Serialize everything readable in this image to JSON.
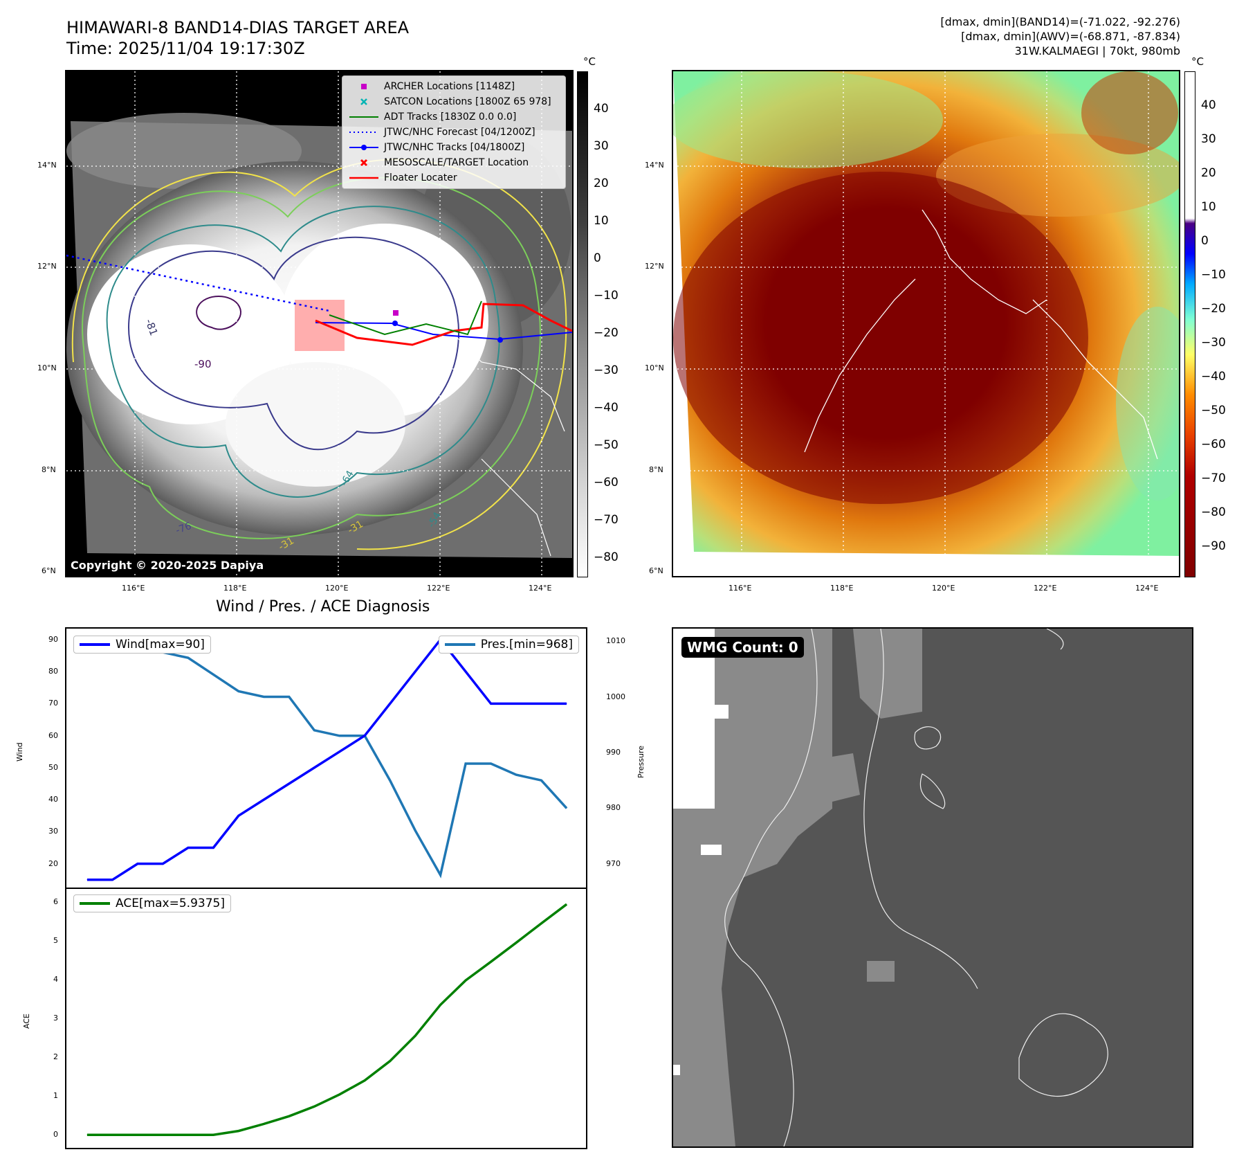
{
  "header": {
    "title_line1": "HIMAWARI-8 BAND14-DIAS TARGET AREA",
    "title_line2": "Time: 2025/11/04 19:17:30Z",
    "meta_line1": "[dmax, dmin](BAND14)=(-71.022, -92.276)",
    "meta_line2": "[dmax, dmin](AWV)=(-68.871, -87.834)",
    "meta_line3": "31W.KALMAEGI | 70kt, 980mb"
  },
  "map": {
    "lat_ticks": [
      "14°N",
      "12°N",
      "10°N",
      "8°N",
      "6°N"
    ],
    "lon_ticks": [
      "116°E",
      "118°E",
      "120°E",
      "122°E",
      "124°E"
    ],
    "contour_labels": [
      "-81",
      "-90",
      "-64",
      "-54",
      "-31",
      "-31",
      "-76"
    ],
    "copyright": "Copyright © 2020-2025 Dapiya",
    "legend": [
      {
        "label": "ARCHER Locations [1148Z]",
        "color": "#c800c8",
        "icon": "square-marker-icon"
      },
      {
        "label": "SATCON Locations [1800Z 65 978]",
        "color": "#00b4b4",
        "icon": "x-marker-icon"
      },
      {
        "label": "ADT Tracks [1830Z 0.0 0.0]",
        "color": "#008000",
        "icon": "line-icon"
      },
      {
        "label": "JTWC/NHC Forecast [04/1200Z]",
        "color": "#0000ff",
        "icon": "dotted-line-icon"
      },
      {
        "label": "JTWC/NHC Tracks [04/1800Z]",
        "color": "#0000ff",
        "icon": "line-dot-icon"
      },
      {
        "label": "MESOSCALE/TARGET Location",
        "color": "#ff0000",
        "icon": "x-marker-icon"
      },
      {
        "label": "Floater Locater",
        "color": "#ff0000",
        "icon": "line-icon"
      }
    ]
  },
  "colorbars": {
    "unit": "°C",
    "gray_ticks": [
      "40",
      "30",
      "20",
      "10",
      "0",
      "−10",
      "−20",
      "−30",
      "−40",
      "−50",
      "−60",
      "−70",
      "−80"
    ],
    "awv_ticks": [
      "40",
      "30",
      "20",
      "10",
      "0",
      "−10",
      "−20",
      "−30",
      "−40",
      "−50",
      "−60",
      "−70",
      "−80",
      "−90"
    ]
  },
  "diagnosis": {
    "title": "Wind / Pres. / ACE Diagnosis",
    "wind_ylabel": "Wind",
    "pres_ylabel": "Pressure",
    "ace_ylabel": "ACE",
    "wind_ticks": [
      "90",
      "80",
      "70",
      "60",
      "50",
      "40",
      "30",
      "20"
    ],
    "pres_ticks": [
      "1010",
      "1000",
      "990",
      "980",
      "970"
    ],
    "ace_ticks": [
      "6",
      "5",
      "4",
      "3",
      "2",
      "1",
      "0"
    ],
    "wind_legend": "Wind[max=90]",
    "pres_legend": "Pres.[min=968]",
    "ace_legend": "ACE[max=5.9375]",
    "wind_color": "#0000ff",
    "pres_color": "#1f77b4",
    "ace_color": "#008000"
  },
  "wmg": {
    "label": "WMG Count: 0"
  },
  "chart_data": [
    {
      "type": "line",
      "title": "Wind / Pres. / ACE Diagnosis",
      "ylabel": "Wind",
      "ylim": [
        13,
        93
      ],
      "x": [
        0,
        1,
        2,
        3,
        4,
        5,
        6,
        7,
        8,
        9,
        10,
        11,
        12,
        13,
        14,
        15,
        16,
        17,
        18,
        19
      ],
      "series": [
        {
          "name": "Wind[max=90]",
          "axis": "left",
          "values": [
            15,
            15,
            20,
            20,
            25,
            25,
            35,
            40,
            45,
            50,
            55,
            60,
            70,
            80,
            90,
            80,
            70,
            70,
            70,
            70
          ]
        },
        {
          "name": "Pres.[min=968]",
          "axis": "right",
          "values": [
            1010,
            1008,
            1008,
            1008,
            1007,
            1004,
            1001,
            1000,
            1000,
            994,
            993,
            993,
            985,
            976,
            968,
            988,
            988,
            986,
            985,
            980
          ]
        }
      ],
      "y2label": "Pressure",
      "y2lim": [
        966,
        1012
      ]
    },
    {
      "type": "line",
      "ylabel": "ACE",
      "ylim": [
        -0.3,
        6.3
      ],
      "x": [
        0,
        1,
        2,
        3,
        4,
        5,
        6,
        7,
        8,
        9,
        10,
        11,
        12,
        13,
        14,
        15,
        16,
        17,
        18,
        19
      ],
      "series": [
        {
          "name": "ACE[max=5.9375]",
          "values": [
            0,
            0,
            0,
            0,
            0,
            0,
            0.1,
            0.28,
            0.48,
            0.73,
            1.04,
            1.4,
            1.9,
            2.55,
            3.35,
            3.98,
            4.46,
            4.95,
            5.45,
            5.94
          ]
        }
      ]
    }
  ]
}
